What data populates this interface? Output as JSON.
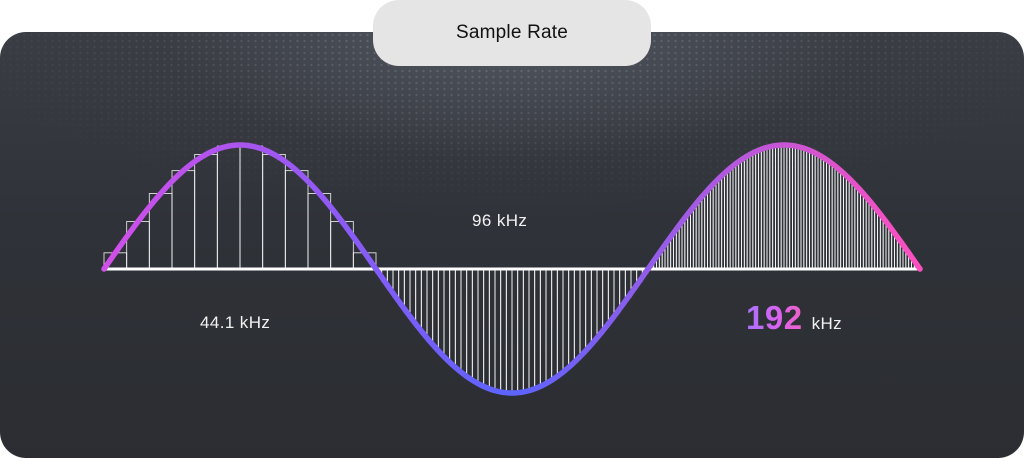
{
  "header": {
    "title": "Sample Rate"
  },
  "labels": {
    "rate_44": "44.1 kHz",
    "rate_96": "96 kHz",
    "rate_192_value": "192",
    "rate_192_unit": "kHz"
  },
  "colors": {
    "panel_background": "#2f3238",
    "wave_gradient_start": "#d24ee8",
    "wave_gradient_mid": "#5b63ff",
    "wave_gradient_end": "#ff4fbf",
    "sample_bars": "#ffffff",
    "title_pill": "#e5e5e5"
  }
}
